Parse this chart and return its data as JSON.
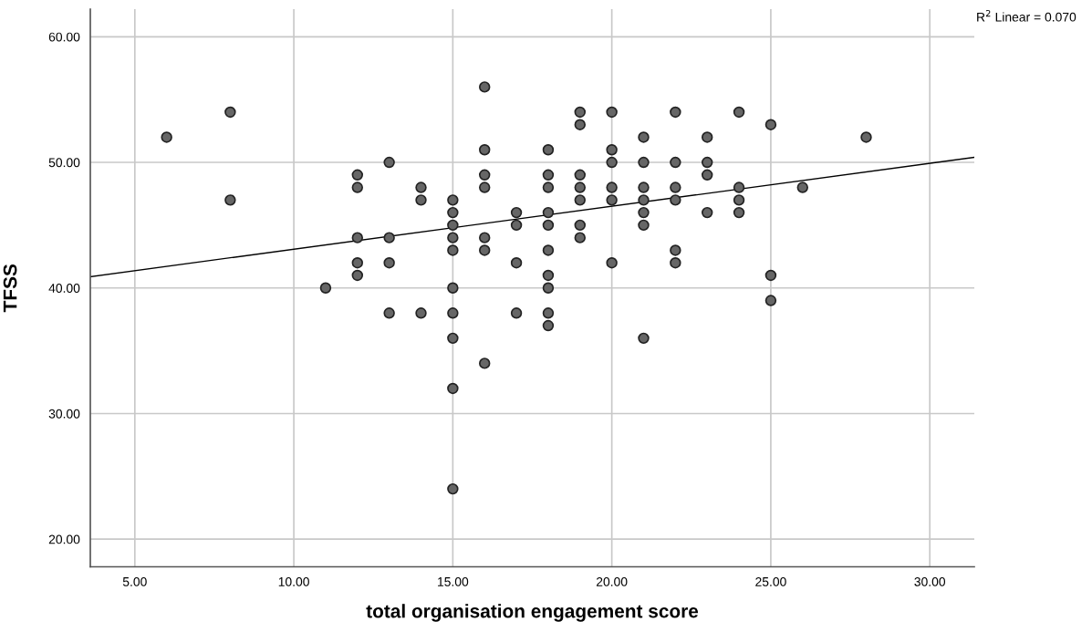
{
  "chart_data": {
    "type": "scatter",
    "xlabel": "total organisation engagement score",
    "ylabel": "TFSS",
    "annotations": [
      "R$^{2}$ Linear = 0.070"
    ],
    "xlim": [
      3.6,
      31.4
    ],
    "ylim": [
      17.8,
      62.2
    ],
    "xticks": [
      {
        "value": 5,
        "label": "5.00"
      },
      {
        "value": 10,
        "label": "10.00"
      },
      {
        "value": 15,
        "label": "15.00"
      },
      {
        "value": 20,
        "label": "20.00"
      },
      {
        "value": 25,
        "label": "25.00"
      },
      {
        "value": 30,
        "label": "30.00"
      }
    ],
    "yticks": [
      {
        "value": 20,
        "label": "20.00"
      },
      {
        "value": 30,
        "label": "30.00"
      },
      {
        "value": 40,
        "label": "40.00"
      },
      {
        "value": 50,
        "label": "50.00"
      },
      {
        "value": 60,
        "label": "60.00"
      }
    ],
    "grid": true,
    "legend": false,
    "series": [
      {
        "marker": "circle",
        "color": "#666666",
        "x": [
          6,
          8,
          8,
          11,
          12,
          12,
          12,
          12,
          12,
          13,
          13,
          13,
          13,
          14,
          14,
          14,
          15,
          15,
          15,
          15,
          15,
          15,
          15,
          15,
          15,
          15,
          16,
          16,
          16,
          16,
          16,
          16,
          16,
          17,
          17,
          17,
          17,
          18,
          18,
          18,
          18,
          18,
          18,
          18,
          18,
          18,
          18,
          19,
          19,
          19,
          19,
          19,
          19,
          19,
          20,
          20,
          20,
          20,
          20,
          20,
          21,
          21,
          21,
          21,
          21,
          21,
          21,
          22,
          22,
          22,
          22,
          22,
          22,
          23,
          23,
          23,
          23,
          24,
          24,
          24,
          24,
          25,
          25,
          25,
          26,
          28
        ],
        "values": [
          52,
          54,
          47,
          40,
          49,
          48,
          44,
          42,
          41,
          50,
          44,
          42,
          38,
          48,
          47,
          38,
          47,
          46,
          45,
          44,
          43,
          40,
          38,
          36,
          32,
          24,
          56,
          51,
          49,
          48,
          44,
          43,
          34,
          46,
          45,
          42,
          38,
          51,
          49,
          48,
          46,
          45,
          43,
          41,
          40,
          38,
          37,
          54,
          53,
          49,
          48,
          47,
          45,
          44,
          54,
          51,
          50,
          48,
          47,
          42,
          52,
          50,
          48,
          47,
          46,
          45,
          36,
          54,
          50,
          48,
          47,
          43,
          42,
          52,
          50,
          49,
          46,
          54,
          48,
          47,
          46,
          53,
          41,
          39,
          48,
          52
        ]
      },
      {
        "type": "line",
        "color": "#000000",
        "x": [
          3.6,
          31.4
        ],
        "values": [
          40.9,
          50.4
        ]
      }
    ]
  }
}
